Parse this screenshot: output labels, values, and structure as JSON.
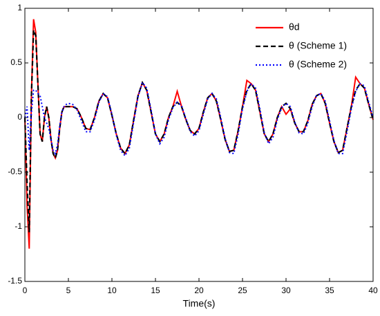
{
  "chart_data": {
    "type": "line",
    "xlabel": "Time(s)",
    "xlim": [
      0,
      40
    ],
    "xticks": [
      0,
      5,
      10,
      15,
      20,
      25,
      30,
      35,
      40
    ],
    "ylim": [
      -1.5,
      1
    ],
    "yticks": [
      -1.5,
      -1,
      -0.5,
      0,
      0.5,
      1
    ],
    "legend": "upper right",
    "x": [
      0,
      0.25,
      0.5,
      0.75,
      1,
      1.25,
      1.5,
      1.75,
      2,
      2.25,
      2.5,
      2.75,
      3,
      3.25,
      3.5,
      3.75,
      4,
      4.25,
      4.5,
      4.75,
      5,
      5.5,
      6,
      6.5,
      7,
      7.5,
      8,
      8.5,
      9,
      9.5,
      10,
      10.5,
      11,
      11.5,
      12,
      12.5,
      13,
      13.5,
      14,
      14.5,
      15,
      15.5,
      16,
      16.5,
      17,
      17.5,
      18,
      18.5,
      19,
      19.5,
      20,
      20.5,
      21,
      21.5,
      22,
      22.5,
      23,
      23.5,
      24,
      24.5,
      25,
      25.5,
      26,
      26.5,
      27,
      27.5,
      28,
      28.5,
      29,
      29.5,
      30,
      30.5,
      31,
      31.5,
      32,
      32.5,
      33,
      33.5,
      34,
      34.5,
      35,
      35.5,
      36,
      36.5,
      37,
      37.5,
      38,
      38.5,
      39,
      39.5,
      40
    ],
    "series": [
      {
        "name": "θd",
        "color": "#ff0000",
        "dash": "solid",
        "values": [
          0,
          -0.8,
          -1.2,
          0.2,
          0.9,
          0.78,
          0.3,
          -0.15,
          -0.22,
          0.0,
          0.1,
          0.0,
          -0.2,
          -0.33,
          -0.37,
          -0.3,
          -0.1,
          0.05,
          0.1,
          0.1,
          0.1,
          0.1,
          0.08,
          0.0,
          -0.1,
          -0.11,
          0.0,
          0.15,
          0.22,
          0.18,
          0.02,
          -0.15,
          -0.28,
          -0.33,
          -0.25,
          -0.02,
          0.2,
          0.32,
          0.25,
          0.05,
          -0.15,
          -0.22,
          -0.15,
          0.0,
          0.1,
          0.24,
          0.1,
          -0.02,
          -0.12,
          -0.15,
          -0.1,
          0.05,
          0.18,
          0.22,
          0.15,
          -0.02,
          -0.2,
          -0.31,
          -0.3,
          -0.12,
          0.1,
          0.34,
          0.31,
          0.25,
          0.05,
          -0.15,
          -0.22,
          -0.15,
          0.0,
          0.1,
          0.03,
          0.08,
          -0.05,
          -0.13,
          -0.13,
          -0.03,
          0.12,
          0.2,
          0.22,
          0.13,
          -0.05,
          -0.22,
          -0.32,
          -0.3,
          -0.1,
          0.1,
          0.37,
          0.31,
          0.27,
          0.12,
          -0.02
        ]
      },
      {
        "name": "θ (Scheme 1)",
        "color": "#000000",
        "dash": "dashed",
        "values": [
          0,
          -0.6,
          -1.05,
          0.2,
          0.8,
          0.75,
          0.3,
          -0.15,
          -0.22,
          0.0,
          0.1,
          0.0,
          -0.2,
          -0.33,
          -0.37,
          -0.3,
          -0.1,
          0.05,
          0.1,
          0.1,
          0.1,
          0.1,
          0.08,
          0.0,
          -0.1,
          -0.11,
          0.0,
          0.15,
          0.22,
          0.18,
          0.02,
          -0.15,
          -0.28,
          -0.33,
          -0.25,
          -0.02,
          0.2,
          0.32,
          0.25,
          0.05,
          -0.15,
          -0.22,
          -0.15,
          0.0,
          0.1,
          0.14,
          0.1,
          -0.02,
          -0.12,
          -0.15,
          -0.1,
          0.05,
          0.18,
          0.22,
          0.15,
          -0.02,
          -0.2,
          -0.31,
          -0.3,
          -0.12,
          0.1,
          0.25,
          0.31,
          0.25,
          0.05,
          -0.15,
          -0.22,
          -0.15,
          0.0,
          0.1,
          0.13,
          0.08,
          -0.05,
          -0.13,
          -0.13,
          -0.03,
          0.12,
          0.2,
          0.22,
          0.13,
          -0.05,
          -0.22,
          -0.32,
          -0.3,
          -0.1,
          0.1,
          0.25,
          0.31,
          0.27,
          0.12,
          -0.02
        ]
      },
      {
        "name": "θ (Scheme 2)",
        "color": "#0000ff",
        "dash": "dotted",
        "values": [
          0,
          0.1,
          -0.3,
          0.05,
          0.25,
          0.25,
          0.22,
          0.2,
          0.1,
          0.0,
          -0.05,
          -0.1,
          -0.2,
          -0.3,
          -0.33,
          -0.25,
          -0.08,
          0.05,
          0.1,
          0.12,
          0.13,
          0.12,
          0.07,
          -0.03,
          -0.13,
          -0.13,
          -0.02,
          0.14,
          0.22,
          0.19,
          0.03,
          -0.16,
          -0.3,
          -0.35,
          -0.28,
          -0.04,
          0.19,
          0.32,
          0.27,
          0.07,
          -0.15,
          -0.24,
          -0.18,
          -0.02,
          0.09,
          0.14,
          0.11,
          -0.01,
          -0.13,
          -0.17,
          -0.12,
          0.03,
          0.17,
          0.22,
          0.17,
          0.0,
          -0.19,
          -0.32,
          -0.33,
          -0.15,
          0.08,
          0.24,
          0.31,
          0.27,
          0.08,
          -0.14,
          -0.24,
          -0.18,
          -0.02,
          0.09,
          0.13,
          0.1,
          -0.04,
          -0.14,
          -0.15,
          -0.05,
          0.1,
          0.2,
          0.22,
          0.15,
          -0.03,
          -0.21,
          -0.33,
          -0.33,
          -0.13,
          0.08,
          0.24,
          0.31,
          0.29,
          0.14,
          0.0
        ]
      }
    ]
  }
}
